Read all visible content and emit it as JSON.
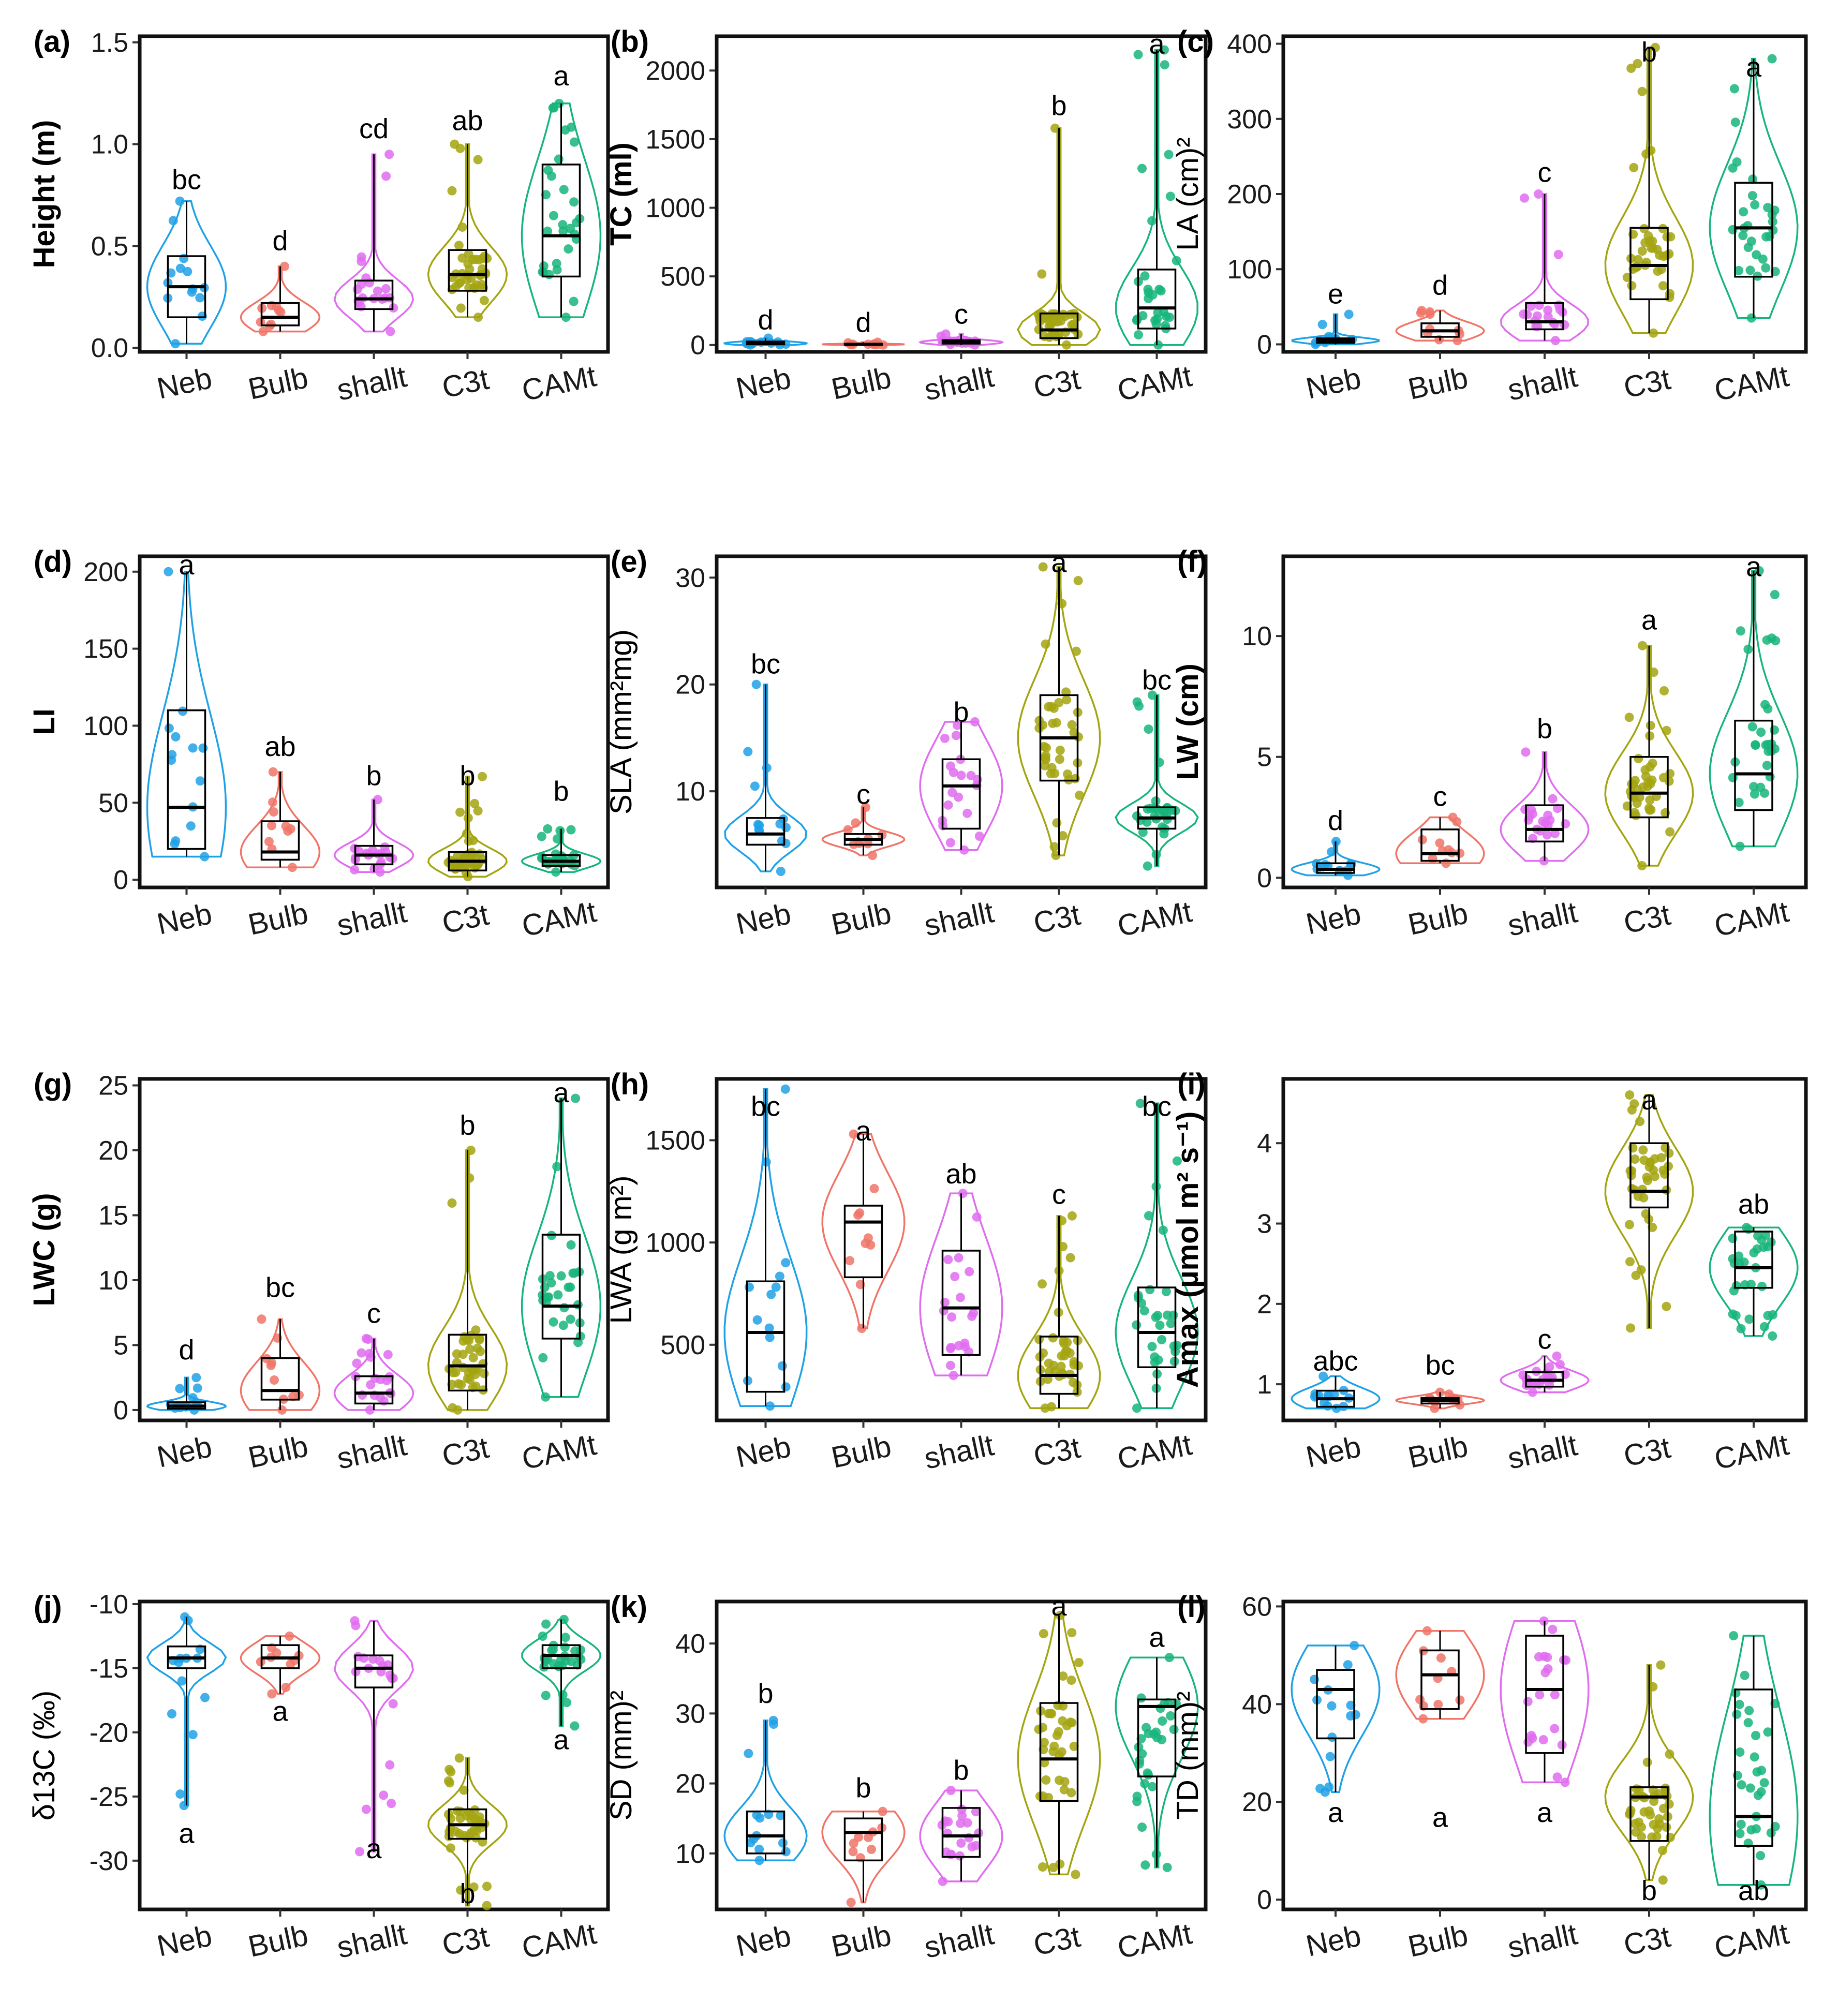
{
  "groups": [
    "Neb",
    "Bulb",
    "shallt",
    "C3t",
    "CAMt"
  ],
  "group_colors": {
    "Neb": "#1ea1e6",
    "Bulb": "#f07467",
    "shallt": "#e06cf0",
    "C3t": "#a3a510",
    "CAMt": "#17b57b"
  },
  "chart_data": [
    {
      "id": "a",
      "type": "violin-box",
      "panel_label": "(a)",
      "ylabel": "Height (m)",
      "ylim": [
        -0.02,
        1.53
      ],
      "yticks": [
        0.0,
        0.5,
        1.0,
        1.5
      ],
      "yticklabels": [
        "0.0",
        "0.5",
        "1.0",
        "1.5"
      ],
      "violin": [
        [
          0.02,
          0.72
        ],
        [
          0.08,
          0.4
        ],
        [
          0.08,
          0.95
        ],
        [
          0.15,
          1.0
        ],
        [
          0.15,
          1.2
        ]
      ],
      "box": [
        [
          0.15,
          0.3,
          0.45
        ],
        [
          0.11,
          0.15,
          0.22
        ],
        [
          0.19,
          0.24,
          0.33
        ],
        [
          0.28,
          0.36,
          0.48
        ],
        [
          0.35,
          0.55,
          0.9
        ]
      ],
      "letters": [
        "bc",
        "d",
        "cd",
        "ab",
        "a"
      ],
      "letter_y": [
        0.83,
        0.53,
        1.08,
        1.12,
        1.34
      ],
      "letter_pos": "above"
    },
    {
      "id": "b",
      "type": "violin-box",
      "panel_label": "(b)",
      "ylabel": "TC (ml)",
      "ylim": [
        -50,
        2250
      ],
      "yticks": [
        0,
        500,
        1000,
        1500,
        2000
      ],
      "yticklabels": [
        "0",
        "500",
        "1000",
        "1500",
        "2000"
      ],
      "violin": [
        [
          0,
          50
        ],
        [
          0,
          20
        ],
        [
          0,
          80
        ],
        [
          0,
          1580
        ],
        [
          0,
          2150
        ]
      ],
      "box": [
        [
          5,
          12,
          25
        ],
        [
          2,
          5,
          8
        ],
        [
          10,
          20,
          35
        ],
        [
          50,
          110,
          230
        ],
        [
          120,
          270,
          550
        ]
      ],
      "letters": [
        "d",
        "d",
        "c",
        "b",
        "a"
      ],
      "letter_y": [
        190,
        170,
        230,
        1750,
        2200
      ],
      "letter_pos": "above"
    },
    {
      "id": "c",
      "type": "violin-box",
      "panel_label": "(c)",
      "ylabel": "LA (cm)²",
      "ylim": [
        -10,
        410
      ],
      "yticks": [
        0,
        100,
        200,
        300,
        400
      ],
      "yticklabels": [
        "0",
        "100",
        "200",
        "300",
        "400"
      ],
      "violin": [
        [
          0,
          40
        ],
        [
          5,
          45
        ],
        [
          5,
          200
        ],
        [
          15,
          395
        ],
        [
          35,
          380
        ]
      ],
      "box": [
        [
          2,
          5,
          8
        ],
        [
          10,
          18,
          28
        ],
        [
          20,
          30,
          55
        ],
        [
          60,
          105,
          155
        ],
        [
          90,
          155,
          215
        ]
      ],
      "letters": [
        "e",
        "d",
        "c",
        "b",
        "a"
      ],
      "letter_y": [
        68,
        80,
        230,
        390,
        370
      ],
      "letter_pos": "above"
    },
    {
      "id": "d",
      "type": "violin-box",
      "panel_label": "(d)",
      "ylabel": "LI",
      "ylim": [
        -5,
        210
      ],
      "yticks": [
        0,
        50,
        100,
        150,
        200
      ],
      "yticklabels": [
        "0",
        "50",
        "100",
        "150",
        "200"
      ],
      "violin": [
        [
          15,
          200
        ],
        [
          8,
          70
        ],
        [
          5,
          52
        ],
        [
          2,
          67
        ],
        [
          5,
          33
        ]
      ],
      "box": [
        [
          20,
          47,
          110
        ],
        [
          13,
          18,
          38
        ],
        [
          10,
          16,
          22
        ],
        [
          6,
          12,
          18
        ],
        [
          9,
          12,
          16
        ]
      ],
      "letters": [
        "a",
        "ab",
        "b",
        "b",
        "b"
      ],
      "letter_y": [
        205,
        87,
        68,
        68,
        58
      ],
      "letter_pos": "above"
    },
    {
      "id": "e",
      "type": "violin-box",
      "panel_label": "(e)",
      "ylabel": "SLA (mm²mg)",
      "ylim": [
        1,
        32
      ],
      "yticks": [
        10,
        20,
        30
      ],
      "yticklabels": [
        "10",
        "20",
        "30"
      ],
      "violin": [
        [
          2.5,
          20
        ],
        [
          4,
          8.5
        ],
        [
          4.5,
          16.5
        ],
        [
          4,
          31
        ],
        [
          3,
          19
        ]
      ],
      "box": [
        [
          5,
          6,
          7.5
        ],
        [
          5,
          5.5,
          6
        ],
        [
          6.5,
          10.5,
          13
        ],
        [
          11,
          15,
          19
        ],
        [
          6.5,
          7.5,
          8.5
        ]
      ],
      "letters": [
        "bc",
        "c",
        "b",
        "a",
        "bc"
      ],
      "letter_y": [
        22,
        9.8,
        17.5,
        31.5,
        20.5
      ],
      "letter_pos": "above"
    },
    {
      "id": "f",
      "type": "violin-box",
      "panel_label": "(f)",
      "ylabel": "LW (cm)",
      "ylim": [
        -0.4,
        13.3
      ],
      "yticks": [
        0,
        5,
        10
      ],
      "yticklabels": [
        "0",
        "5",
        "10"
      ],
      "violin": [
        [
          0.1,
          1.5
        ],
        [
          0.6,
          2.5
        ],
        [
          0.7,
          5.2
        ],
        [
          0.5,
          9.6
        ],
        [
          1.3,
          12.7
        ]
      ],
      "box": [
        [
          0.2,
          0.35,
          0.6
        ],
        [
          0.7,
          1.0,
          2.0
        ],
        [
          1.5,
          2.0,
          3.0
        ],
        [
          2.5,
          3.5,
          5.0
        ],
        [
          2.8,
          4.3,
          6.5
        ]
      ],
      "letters": [
        "d",
        "c",
        "b",
        "a",
        "a"
      ],
      "letter_y": [
        2.4,
        3.4,
        6.2,
        10.7,
        12.9
      ],
      "letter_pos": "above"
    },
    {
      "id": "g",
      "type": "violin-box",
      "panel_label": "(g)",
      "ylabel": "LWC (g)",
      "ylim": [
        -0.8,
        25.5
      ],
      "yticks": [
        0,
        5,
        10,
        15,
        20,
        25
      ],
      "yticklabels": [
        "0",
        "5",
        "10",
        "15",
        "20",
        "25"
      ],
      "violin": [
        [
          0,
          2.5
        ],
        [
          0,
          7
        ],
        [
          0,
          5.5
        ],
        [
          0,
          20
        ],
        [
          1,
          24
        ]
      ],
      "box": [
        [
          0.1,
          0.3,
          0.6
        ],
        [
          0.8,
          1.5,
          4
        ],
        [
          0.5,
          1.3,
          2.6
        ],
        [
          1.5,
          3.4,
          5.8
        ],
        [
          5.5,
          8,
          13.5
        ]
      ],
      "letters": [
        "d",
        "bc",
        "c",
        "b",
        "a"
      ],
      "letter_y": [
        4.7,
        9.5,
        7.5,
        22,
        24.5
      ],
      "letter_pos": "above"
    },
    {
      "id": "h",
      "type": "violin-box",
      "panel_label": "(h)",
      "ylabel": "LWA (g m²)",
      "ylim": [
        130,
        1800
      ],
      "yticks": [
        500,
        1000,
        1500
      ],
      "yticklabels": [
        "500",
        "1000",
        "1500"
      ],
      "violin": [
        [
          200,
          1750
        ],
        [
          580,
          1530
        ],
        [
          350,
          1240
        ],
        [
          190,
          1130
        ],
        [
          190,
          1680
        ]
      ],
      "box": [
        [
          270,
          560,
          810
        ],
        [
          830,
          1100,
          1180
        ],
        [
          450,
          680,
          960
        ],
        [
          260,
          350,
          540
        ],
        [
          390,
          560,
          780
        ]
      ],
      "letters": [
        "bc",
        "a",
        "ab",
        "c",
        "bc"
      ],
      "letter_y": [
        1670,
        1550,
        1340,
        1240,
        1670
      ],
      "letter_pos": "above"
    },
    {
      "id": "i",
      "type": "violin-box",
      "panel_label": "(i)",
      "ylabel": "Amax (µmol m² s⁻¹)",
      "ylim": [
        0.55,
        4.8
      ],
      "yticks": [
        1,
        2,
        3,
        4
      ],
      "yticklabels": [
        "1",
        "2",
        "3",
        "4"
      ],
      "violin": [
        [
          0.7,
          1.1
        ],
        [
          0.7,
          0.9
        ],
        [
          0.9,
          1.35
        ],
        [
          1.7,
          4.6
        ],
        [
          1.6,
          2.95
        ]
      ],
      "box": [
        [
          0.72,
          0.82,
          0.92
        ],
        [
          0.76,
          0.8,
          0.83
        ],
        [
          0.97,
          1.05,
          1.15
        ],
        [
          3.2,
          3.4,
          4.0
        ],
        [
          2.2,
          2.45,
          2.9
        ]
      ],
      "letters": [
        "abc",
        "bc",
        "c",
        "a",
        "ab"
      ],
      "letter_y": [
        1.3,
        1.25,
        1.57,
        4.55,
        3.25
      ],
      "letter_pos": "above"
    },
    {
      "id": "j",
      "type": "violin-box",
      "panel_label": "(j)",
      "ylabel": "δ13C (‰)",
      "ylim": [
        -33.8,
        -9.8
      ],
      "yticks": [
        -10,
        -15,
        -20,
        -25,
        -30
      ],
      "yticklabels": [
        "-10",
        "-15",
        "-20",
        "-25",
        "-30"
      ],
      "violin": [
        [
          -25.7,
          -11
        ],
        [
          -17,
          -12.5
        ],
        [
          -29.3,
          -11.3
        ],
        [
          -33.5,
          -22
        ],
        [
          -19.5,
          -11.2
        ]
      ],
      "box": [
        [
          -15,
          -14.2,
          -13.3
        ],
        [
          -15,
          -14.2,
          -13.2
        ],
        [
          -16.5,
          -15,
          -14
        ],
        [
          -28.3,
          -27.2,
          -26
        ],
        [
          -15,
          -14,
          -13.2
        ]
      ],
      "letters": [
        "a",
        "a",
        "a",
        "b",
        "a"
      ],
      "letter_y": [
        -27.8,
        -18.3,
        -29,
        -32.5,
        -20.5
      ],
      "letter_pos": "below"
    },
    {
      "id": "k",
      "type": "violin-box",
      "panel_label": "(k)",
      "ylabel": "SD (mm)²",
      "ylim": [
        2,
        46
      ],
      "yticks": [
        10,
        20,
        30,
        40
      ],
      "yticklabels": [
        "10",
        "20",
        "30",
        "40"
      ],
      "violin": [
        [
          9,
          29
        ],
        [
          3,
          16
        ],
        [
          6,
          19
        ],
        [
          7,
          44
        ],
        [
          8,
          38
        ]
      ],
      "box": [
        [
          10,
          12.5,
          16
        ],
        [
          9,
          13,
          15
        ],
        [
          9.5,
          12.5,
          16.5
        ],
        [
          17.5,
          23.5,
          31.5
        ],
        [
          21,
          31,
          32
        ]
      ],
      "letters": [
        "b",
        "b",
        "b",
        "a",
        "a"
      ],
      "letter_y": [
        33,
        19.5,
        22,
        45.5,
        41
      ],
      "letter_pos": "above"
    },
    {
      "id": "l",
      "type": "violin-box",
      "panel_label": "(l)",
      "ylabel": "TD (mm)²",
      "ylim": [
        -2,
        61
      ],
      "yticks": [
        0,
        20,
        40,
        60
      ],
      "yticklabels": [
        "0",
        "20",
        "40",
        "60"
      ],
      "violin": [
        [
          22,
          52
        ],
        [
          37,
          55
        ],
        [
          24,
          57
        ],
        [
          4,
          48
        ],
        [
          3,
          54
        ]
      ],
      "box": [
        [
          33,
          43,
          47
        ],
        [
          39,
          46,
          51
        ],
        [
          30,
          43,
          54
        ],
        [
          12,
          21,
          23
        ],
        [
          11,
          17,
          43
        ]
      ],
      "letters": [
        "a",
        "a",
        "a",
        "b",
        "ab"
      ],
      "letter_y": [
        18,
        17,
        18,
        2,
        2
      ],
      "letter_pos": "below"
    }
  ]
}
